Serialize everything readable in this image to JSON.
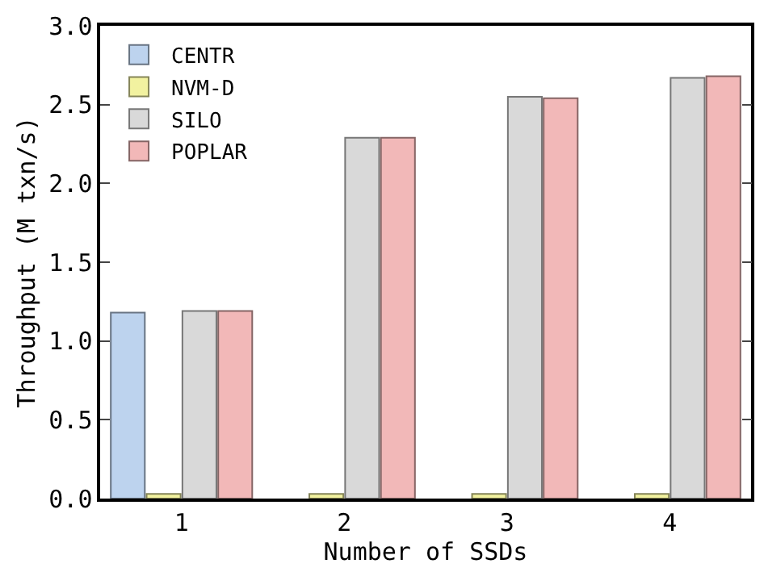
{
  "chart_data": {
    "type": "bar",
    "xlabel": "Number of SSDs",
    "ylabel": "Throughput (M txn/s)",
    "categories": [
      "1",
      "2",
      "3",
      "4"
    ],
    "series": [
      {
        "name": "CENTR",
        "color": "#bdd3ee",
        "values": [
          1.18,
          null,
          null,
          null
        ]
      },
      {
        "name": "NVM-D",
        "color": "#f2f2a0",
        "values": [
          0.03,
          0.03,
          0.03,
          0.03
        ]
      },
      {
        "name": "SILO",
        "color": "#d9d9d9",
        "values": [
          1.19,
          2.29,
          2.55,
          2.67
        ]
      },
      {
        "name": "POPLAR",
        "color": "#f2b8b8",
        "values": [
          1.19,
          2.29,
          2.54,
          2.68
        ]
      }
    ],
    "ylim": [
      0,
      3
    ],
    "yticks": [
      {
        "value": 0,
        "label": "0.0"
      },
      {
        "value": 0.5,
        "label": "0.5"
      },
      {
        "value": 1,
        "label": "1.0"
      },
      {
        "value": 1.5,
        "label": "1.5"
      },
      {
        "value": 2,
        "label": "2.0"
      },
      {
        "value": 2.5,
        "label": "2.5"
      },
      {
        "value": 3,
        "label": "3.0"
      }
    ],
    "grid": false,
    "legend": "top left"
  }
}
